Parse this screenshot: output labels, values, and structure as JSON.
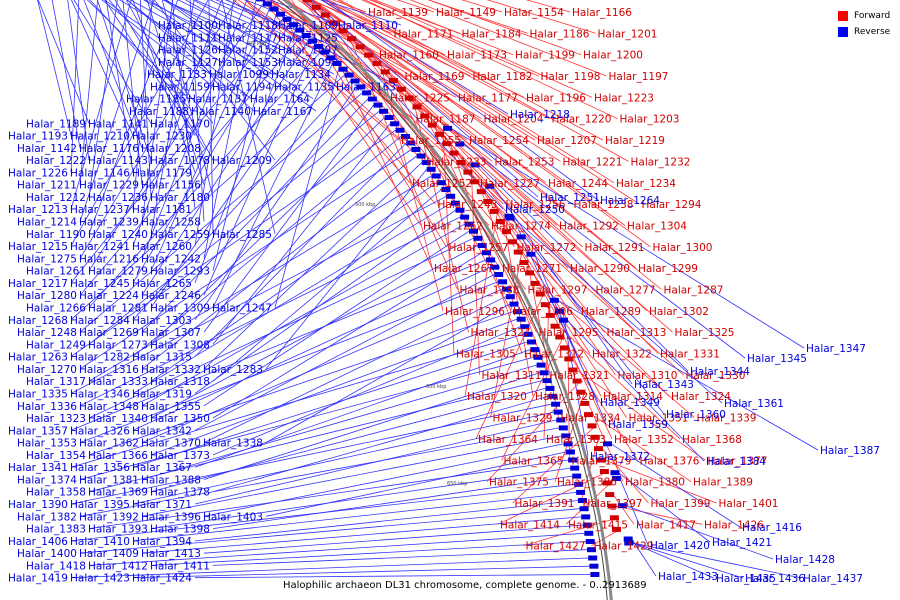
{
  "legend": {
    "forward": {
      "label": "Forward",
      "color": "#ff0000"
    },
    "reverse": {
      "label": "Reverse",
      "color": "#0000ff"
    }
  },
  "caption": "Halophilic archaeon DL31 chromosome, complete genome. - 0..2913689",
  "ticks": [
    "400 kbp",
    "500 kbp",
    "600 kbp",
    "650 kbp"
  ],
  "colors": {
    "forward": "#d00000",
    "reverse": "#0000dd",
    "forward_line": "#ff3333",
    "reverse_line": "#3333ff"
  },
  "forward_labels": [
    "Halar_1139",
    "Halar_1149",
    "Halar_1154",
    "Halar_1166",
    "Halar_1171",
    "Halar_1184",
    "Halar_1186",
    "Halar_1201",
    "Halar_1160",
    "Halar_1173",
    "Halar_1199",
    "Halar_1200",
    "Halar_1169",
    "Halar_1182",
    "Halar_1198",
    "Halar_1197",
    "Halar_1225",
    "Halar_1177",
    "Halar_1196",
    "Halar_1223",
    "Halar_1187",
    "Halar_1204",
    "Halar_1220",
    "Halar_1203",
    "Halar_1255",
    "Halar_1254",
    "Halar_1207",
    "Halar_1219",
    "Halar_1233",
    "Halar_1253",
    "Halar_1221",
    "Halar_1232",
    "Halar_1252",
    "Halar_1227",
    "Halar_1244",
    "Halar_1234",
    "Halar_1243",
    "Halar_1256",
    "Halar_1238",
    "Halar_1294",
    "Halar_1262",
    "Halar_1274",
    "Halar_1292",
    "Halar_1304",
    "Halar_1257",
    "Halar_1272",
    "Halar_1291",
    "Halar_1300",
    "Halar_1267",
    "Halar_1271",
    "Halar_1290",
    "Halar_1299",
    "Halar_1288",
    "Halar_1297",
    "Halar_1277",
    "Halar_1287",
    "Halar_1296",
    "Halar_1306",
    "Halar_1289",
    "Halar_1302",
    "Halar_1327",
    "Halar_1295",
    "Halar_1313",
    "Halar_1325",
    "Halar_1305",
    "Halar_1312",
    "Halar_1322",
    "Halar_1331",
    "Halar_1311",
    "Halar_1321",
    "Halar_1310",
    "Halar_1330",
    "Halar_1320",
    "Halar_1328",
    "Halar_1314",
    "Halar_1324",
    "Halar_1329",
    "Halar_1334",
    "Halar_1351",
    "Halar_1339",
    "Halar_1364",
    "Halar_1363",
    "Halar_1352",
    "Halar_1368",
    "Halar_1365",
    "Halar_1379",
    "Halar_1376",
    "Halar_1377",
    "Halar_1375",
    "Halar_1386",
    "Halar_1380",
    "Halar_1389",
    "Halar_1391",
    "Halar_1397",
    "Halar_1399",
    "Halar_1401",
    "Halar_1414",
    "Halar_1415",
    "Halar_1417",
    "Halar_1426",
    "Halar_1427",
    "Halar_1429"
  ],
  "reverse_right_labels": [
    "Halar_1218",
    "Halar_1251",
    "Halar_1264",
    "Halar_1250",
    "Halar_1347",
    "Halar_1345",
    "Halar_1344",
    "Halar_1343",
    "Halar_1349",
    "Halar_1361",
    "Halar_1360",
    "Halar_1359",
    "Halar_1372",
    "Halar_1387",
    "Halar_1384",
    "Halar_1416",
    "Halar_1420",
    "Halar_1421",
    "Halar_1428",
    "Halar_1433",
    "Halar_1435",
    "Halar_1436",
    "Halar_1437"
  ],
  "reverse_left_labels": [
    "Halar_1100",
    "Halar_1118",
    "Halar_1109",
    "Halar_1110",
    "Halar_1111",
    "Halar_1117",
    "Halar_1125",
    "Halar_1126",
    "Halar_1152",
    "Halar_1097",
    "Halar_1127",
    "Halar_1153",
    "Halar_1098",
    "Halar_1133",
    "Halar_1099",
    "Halar_1134",
    "Halar_1159",
    "Halar_1194",
    "Halar_1135",
    "Halar_1163",
    "Halar_1185",
    "Halar_1137",
    "Halar_1164",
    "Halar_1188",
    "Halar_1140",
    "Halar_1167",
    "Halar_1189",
    "Halar_1141",
    "Halar_1170",
    "Halar_1193",
    "Halar_1210",
    "Halar_1230",
    "Halar_1142",
    "Halar_1176",
    "Halar_1208",
    "Halar_1222",
    "Halar_1143",
    "Halar_1178",
    "Halar_1209",
    "Halar_1226",
    "Halar_1146",
    "Halar_1179",
    "Halar_1211",
    "Halar_1229",
    "Halar_1156",
    "Halar_1212",
    "Halar_1236",
    "Halar_1180",
    "Halar_1213",
    "Halar_1237",
    "Halar_1181",
    "Halar_1214",
    "Halar_1239",
    "Halar_1258",
    "Halar_1190",
    "Halar_1240",
    "Halar_1259",
    "Halar_1285",
    "Halar_1215",
    "Halar_1241",
    "Halar_1260",
    "Halar_1275",
    "Halar_1216",
    "Halar_1242",
    "Halar_1261",
    "Halar_1279",
    "Halar_1293",
    "Halar_1217",
    "Halar_1245",
    "Halar_1265",
    "Halar_1280",
    "Halar_1224",
    "Halar_1246",
    "Halar_1266",
    "Halar_1281",
    "Halar_1309",
    "Halar_1247",
    "Halar_1268",
    "Halar_1284",
    "Halar_1303",
    "Halar_1248",
    "Halar_1269",
    "Halar_1307",
    "Halar_1249",
    "Halar_1273",
    "Halar_1308",
    "Halar_1263",
    "Halar_1282",
    "Halar_1315",
    "Halar_1270",
    "Halar_1316",
    "Halar_1332",
    "Halar_1283",
    "Halar_1317",
    "Halar_1333",
    "Halar_1318",
    "Halar_1335",
    "Halar_1346",
    "Halar_1319",
    "Halar_1336",
    "Halar_1348",
    "Halar_1355",
    "Halar_1323",
    "Halar_1340",
    "Halar_1350",
    "Halar_1357",
    "Halar_1326",
    "Halar_1342",
    "Halar_1353",
    "Halar_1362",
    "Halar_1370",
    "Halar_1338",
    "Halar_1354",
    "Halar_1366",
    "Halar_1373",
    "Halar_1341",
    "Halar_1356",
    "Halar_1367",
    "Halar_1374",
    "Halar_1381",
    "Halar_1388",
    "Halar_1358",
    "Halar_1369",
    "Halar_1378",
    "Halar_1390",
    "Halar_1395",
    "Halar_1371",
    "Halar_1382",
    "Halar_1392",
    "Halar_1396",
    "Halar_1403",
    "Halar_1383",
    "Halar_1393",
    "Halar_1398",
    "Halar_1406",
    "Halar_1410",
    "Halar_1394",
    "Halar_1400",
    "Halar_1409",
    "Halar_1413",
    "Halar_1418",
    "Halar_1412",
    "Halar_1411",
    "Halar_1419",
    "Halar_1423",
    "Halar_1424"
  ]
}
